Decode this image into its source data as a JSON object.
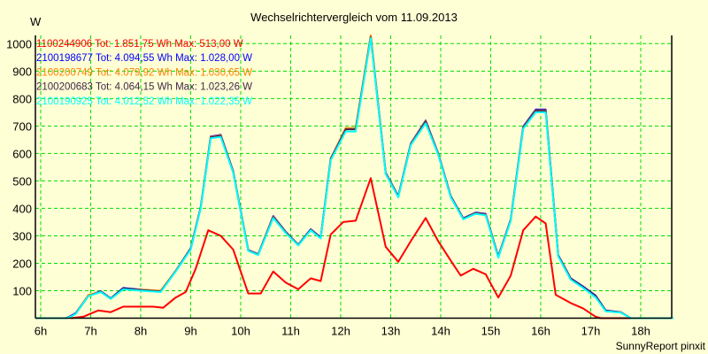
{
  "chart_data": {
    "type": "line",
    "title": "Wechselrichtervergleich vom 11.09.2013",
    "ylabel": "W",
    "xlabel": "",
    "footer": "SunnyReport pinxit",
    "xlim": [
      5.894,
      18.62
    ],
    "ylim": [
      0,
      1030
    ],
    "grid": true,
    "legend_placement": "top-left",
    "x_ticks": [
      6,
      7,
      8,
      9,
      10,
      11,
      12,
      13,
      14,
      15,
      16,
      17,
      18
    ],
    "x_tick_labels": [
      "6h",
      "7h",
      "8h",
      "9h",
      "10h",
      "11h",
      "12h",
      "13h",
      "14h",
      "15h",
      "16h",
      "17h",
      "18h"
    ],
    "y_ticks": [
      100,
      200,
      300,
      400,
      500,
      600,
      700,
      800,
      900,
      1000
    ],
    "y_tick_labels": [
      "100",
      "200",
      "300",
      "400",
      "500",
      "600",
      "700",
      "800",
      "900",
      "1000"
    ],
    "x_common": [
      5.9,
      6.5,
      6.6,
      6.7,
      6.95,
      7.2,
      7.4,
      7.65,
      8.0,
      8.4,
      8.7,
      9.0,
      9.2,
      9.4,
      9.6,
      9.85,
      10.15,
      10.35,
      10.65,
      10.9,
      11.15,
      11.4,
      11.6,
      11.8,
      12.1,
      12.3,
      12.6,
      12.9,
      13.15,
      13.4,
      13.7,
      13.95,
      14.2,
      14.45,
      14.7,
      14.9,
      15.15,
      15.4,
      15.65,
      15.9,
      16.1,
      16.35,
      16.6,
      16.85,
      17.1,
      17.3,
      17.6,
      17.8,
      18.65
    ],
    "series": [
      {
        "name": "1100244906",
        "label": "1100244906 Tot: 1.851,75 Wh Max: 513,00 W",
        "color": "#ff0000",
        "x": [
          6.6,
          6.85,
          7.15,
          7.4,
          7.65,
          8.25,
          8.45,
          8.7,
          8.9,
          9.1,
          9.35,
          9.6,
          9.85,
          10.15,
          10.4,
          10.65,
          10.9,
          11.15,
          11.4,
          11.6,
          11.8,
          12.05,
          12.3,
          12.6,
          12.9,
          13.15,
          13.4,
          13.7,
          13.95,
          14.2,
          14.4,
          14.65,
          14.9,
          15.15,
          15.4,
          15.65,
          15.9,
          16.1,
          16.3,
          16.6,
          16.85,
          17.1,
          17.2,
          18.3
        ],
        "values": [
          0,
          5,
          28,
          22,
          42,
          42,
          38,
          75,
          95,
          180,
          320,
          300,
          250,
          90,
          90,
          170,
          130,
          105,
          145,
          135,
          305,
          350,
          355,
          510,
          260,
          205,
          280,
          365,
          280,
          210,
          155,
          180,
          160,
          75,
          155,
          320,
          370,
          345,
          85,
          55,
          35,
          5,
          0,
          0
        ]
      },
      {
        "name": "2100198677",
        "label": "2100198677 Tot: 4.094,55 Wh Max: 1.028,00 W",
        "color": "#0000ff",
        "values": [
          0,
          0,
          8,
          18,
          82,
          98,
          72,
          110,
          104,
          98,
          172,
          255,
          405,
          662,
          668,
          535,
          248,
          233,
          372,
          315,
          268,
          324,
          294,
          582,
          690,
          690,
          1028,
          530,
          445,
          636,
          720,
          600,
          445,
          364,
          385,
          380,
          225,
          360,
          698,
          760,
          760,
          230,
          145,
          115,
          82,
          28,
          22,
          0,
          0
        ]
      },
      {
        "name": "2100200749",
        "label": "2100200749 Tot: 4.079,92 Wh Max: 1.030,65 W",
        "color": "#ff8000",
        "values": [
          0,
          0,
          6,
          16,
          84,
          96,
          70,
          106,
          104,
          100,
          172,
          253,
          403,
          660,
          666,
          533,
          247,
          232,
          370,
          313,
          267,
          322,
          292,
          580,
          692,
          692,
          1030,
          528,
          443,
          634,
          718,
          598,
          443,
          362,
          383,
          378,
          223,
          358,
          695,
          757,
          757,
          228,
          143,
          112,
          79,
          26,
          21,
          0,
          0
        ]
      },
      {
        "name": "2100200683",
        "label": "2100200683 Tot: 4.064,15 Wh Max: 1.023,26 W",
        "color": "#402848",
        "values": [
          0,
          0,
          6,
          16,
          80,
          97,
          71,
          108,
          103,
          97,
          171,
          252,
          402,
          658,
          664,
          532,
          246,
          231,
          368,
          312,
          266,
          322,
          292,
          578,
          688,
          688,
          1023,
          527,
          442,
          632,
          716,
          597,
          442,
          362,
          382,
          377,
          222,
          357,
          693,
          755,
          755,
          228,
          143,
          113,
          80,
          27,
          21,
          0,
          0
        ]
      },
      {
        "name": "2100190925",
        "label": "2100190925 Tot: 4.012,52 Wh Max: 1.022,35 W",
        "color": "#00ffff",
        "values": [
          0,
          0,
          5,
          15,
          80,
          95,
          70,
          105,
          100,
          95,
          170,
          250,
          400,
          655,
          660,
          530,
          245,
          230,
          365,
          310,
          265,
          320,
          290,
          575,
          680,
          680,
          1020,
          525,
          440,
          630,
          710,
          595,
          440,
          360,
          380,
          375,
          220,
          355,
          690,
          750,
          750,
          225,
          140,
          110,
          75,
          25,
          20,
          0,
          0
        ]
      }
    ]
  }
}
